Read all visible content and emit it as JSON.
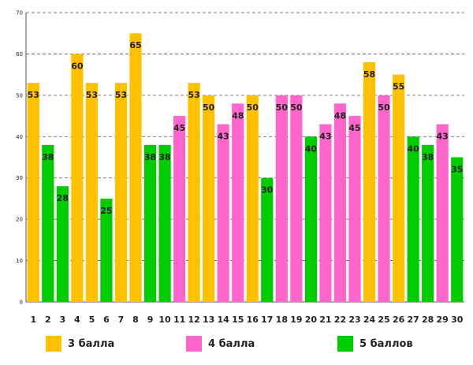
{
  "chart_data": {
    "type": "bar",
    "title": "",
    "xlabel": "",
    "ylabel": "",
    "ylim": [
      0,
      70
    ],
    "yticks": [
      0,
      10,
      20,
      30,
      40,
      50,
      60,
      70
    ],
    "grid": true,
    "legend_position": "bottom",
    "categories": [
      "1",
      "2",
      "3",
      "4",
      "5",
      "6",
      "7",
      "8",
      "9",
      "10",
      "11",
      "12",
      "13",
      "14",
      "15",
      "16",
      "17",
      "18",
      "19",
      "20",
      "21",
      "22",
      "23",
      "24",
      "25",
      "26",
      "27",
      "28",
      "29",
      "30"
    ],
    "values": [
      53,
      38,
      28,
      60,
      53,
      25,
      53,
      65,
      38,
      38,
      45,
      53,
      50,
      43,
      48,
      50,
      30,
      50,
      50,
      40,
      43,
      48,
      45,
      58,
      50,
      55,
      40,
      38,
      43,
      35
    ],
    "groups": [
      "3",
      "5",
      "5",
      "3",
      "3",
      "5",
      "3",
      "3",
      "5",
      "5",
      "4",
      "3",
      "3",
      "4",
      "4",
      "3",
      "5",
      "4",
      "4",
      "5",
      "4",
      "4",
      "4",
      "3",
      "4",
      "3",
      "5",
      "5",
      "4",
      "5"
    ],
    "legend": [
      {
        "key": "3",
        "label": "3 балла",
        "color": "#FFC000"
      },
      {
        "key": "4",
        "label": "4 балла",
        "color": "#FF66CC"
      },
      {
        "key": "5",
        "label": "5 баллов",
        "color": "#00CC00"
      }
    ]
  }
}
